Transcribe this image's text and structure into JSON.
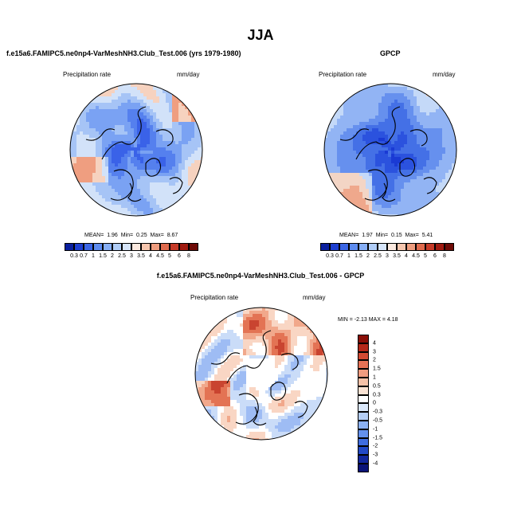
{
  "figure": {
    "season": "JJA",
    "left_title": "f.e15a6.FAMIPC5.ne0np4-VarMeshNH3.Club_Test.006 (yrs 1979-1980)",
    "right_title": "GPCP",
    "diff_title": "f.e15a6.FAMIPC5.ne0np4-VarMeshNH3.Club_Test.006 - GPCP"
  },
  "panels": {
    "model": {
      "var_label": "Precipitation rate",
      "units": "mm/day",
      "stats_mean_label": "MEAN=",
      "stats_mean": "1.96",
      "stats_min_label": "Min=",
      "stats_min": "0.25",
      "stats_max_label": "Max=",
      "stats_max": "8.67"
    },
    "obs": {
      "var_label": "Precipitation rate",
      "units": "mm/day",
      "stats_mean_label": "MEAN=",
      "stats_mean": "1.97",
      "stats_min_label": "Min=",
      "stats_min": "0.15",
      "stats_max_label": "Max=",
      "stats_max": "5.41"
    },
    "diff": {
      "var_label": "Precipitation rate",
      "units": "mm/day",
      "minmax_text": "MIN = -2.13 MAX =  4.18"
    }
  },
  "colorbars": {
    "abs_labels": [
      "0.3",
      "0.7",
      "1",
      "1.5",
      "2",
      "2.5",
      "3",
      "3.5",
      "4",
      "4.5",
      "5",
      "6",
      "8"
    ],
    "abs_colors": [
      "#0a1f9e",
      "#1d3fd1",
      "#3b66e6",
      "#5e8cf0",
      "#86aef5",
      "#b0cdf7",
      "#d6e5fa",
      "#fbe9df",
      "#f6c6ae",
      "#ee9c7e",
      "#df6a4d",
      "#c63a28",
      "#a01a10",
      "#6e0a06"
    ],
    "diff_labels": [
      "4",
      "3",
      "2",
      "1.5",
      "1",
      "0.5",
      "0.3",
      "0",
      "-0.3",
      "-0.5",
      "-1",
      "-1.5",
      "-2",
      "-3",
      "-4"
    ],
    "diff_colors": [
      "#8a0f08",
      "#b5281a",
      "#d24a33",
      "#e57256",
      "#f09c80",
      "#f7c2a8",
      "#fbe3d4",
      "#ffffff",
      "#dbe8fa",
      "#b5cef6",
      "#8cb1f2",
      "#6390ec",
      "#3f6de0",
      "#2249c6",
      "#12289e",
      "#0a1478"
    ]
  },
  "maps": {
    "model_palette": [
      "#2548e0",
      "#3a62e8",
      "#5580ee",
      "#7aa2f3",
      "#a6c4f6",
      "#d2e2f9",
      "#f6d2bf",
      "#ef9e80"
    ],
    "obs_palette": [
      "#1a3ad4",
      "#2b52de",
      "#4470e6",
      "#6690ee",
      "#92b4f4",
      "#c4d9f8",
      "#f3d5c5",
      "#efa88c"
    ],
    "diff_palette": [
      "#6f96ee",
      "#9ebcf4",
      "#cadcf8",
      "#ffffff",
      "#f9d6c4",
      "#f1a88b",
      "#e37354",
      "#c94430"
    ]
  }
}
